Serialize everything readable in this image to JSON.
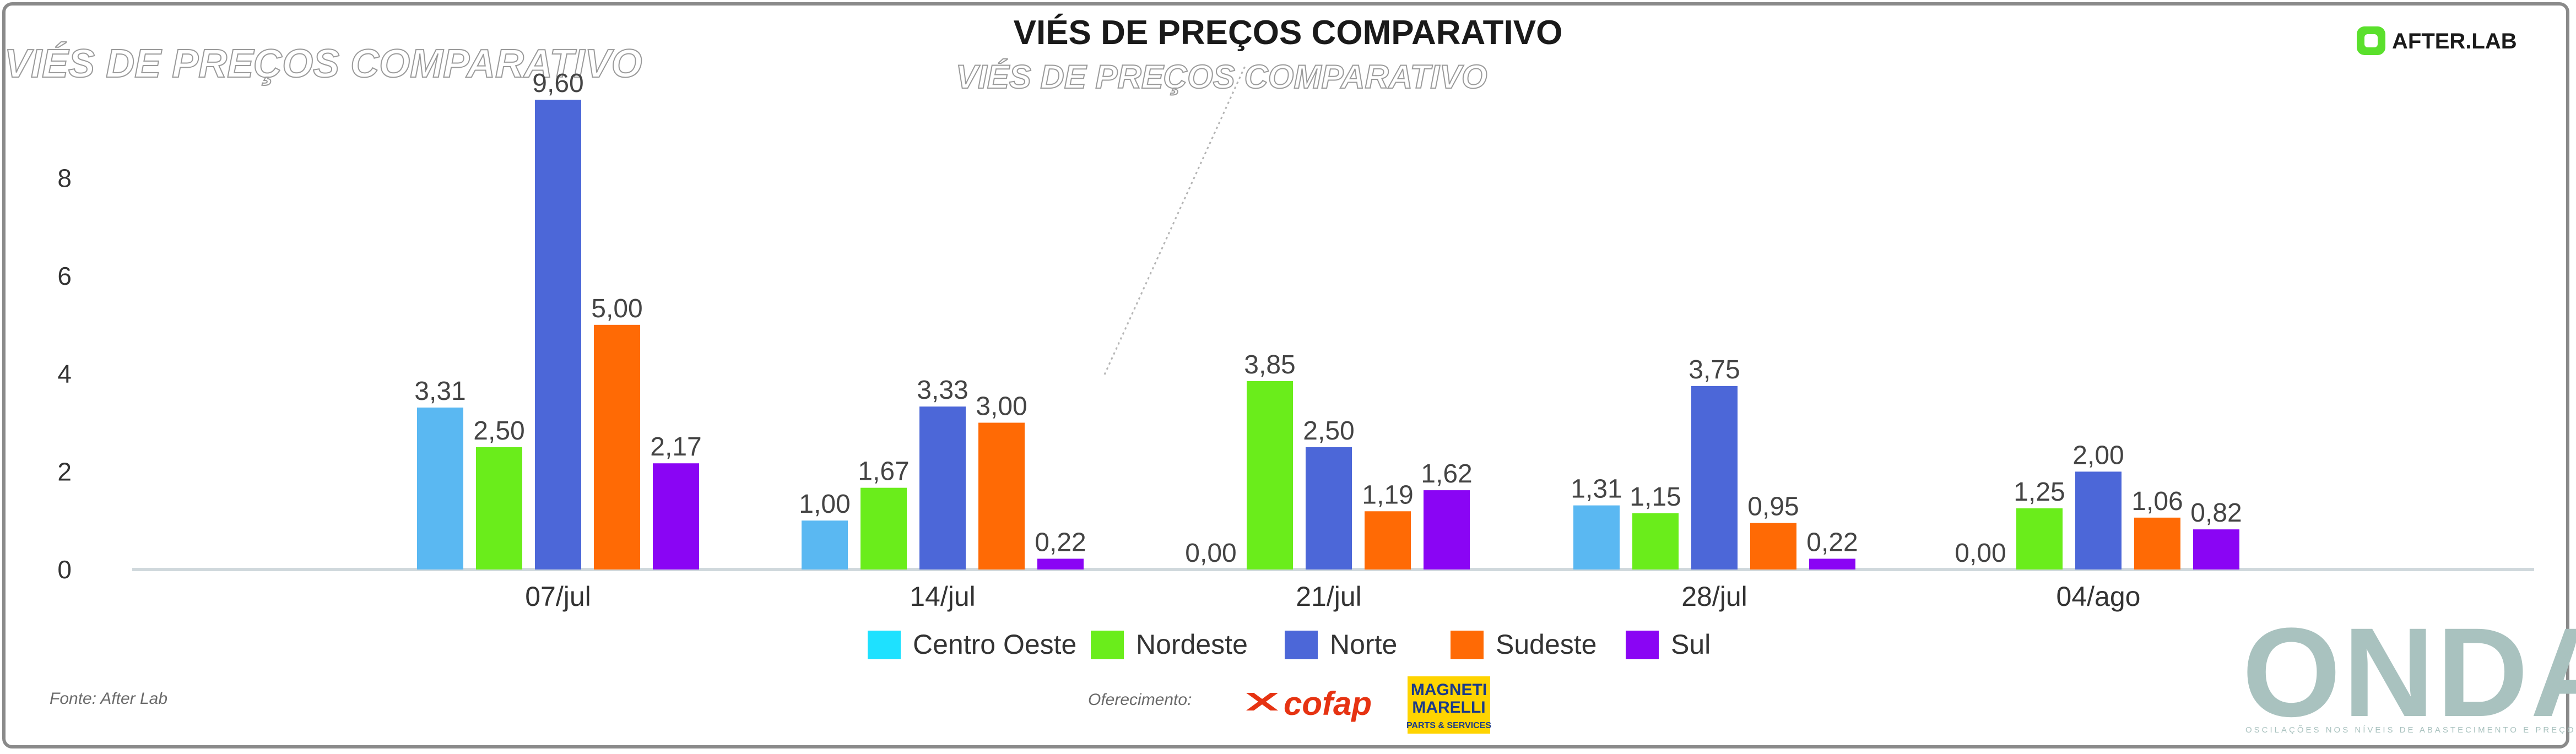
{
  "header": {
    "title": "VIÉS DE PREÇOS COMPARATIVO",
    "brand": "AFTER.LAB"
  },
  "footer": {
    "source": "Fonte: After Lab",
    "sponsors_label": "Oferecimento:",
    "sponsor_1": "cofap",
    "sponsor_2_line1": "MAGNETI",
    "sponsor_2_line2": "MARELLI",
    "sponsor_2_sub": "PARTS & SERVICES",
    "watermark": "ONDA",
    "watermark_sub": "OSCILAÇÕES NOS NÍVEIS DE ABASTECIMENTO E PREÇOS"
  },
  "colors": {
    "accent_afterlab": "#5ae02c",
    "axis": "#d0d8dc",
    "frame": "#8a8a8a"
  },
  "chart_data": {
    "type": "bar",
    "title": "VIÉS DE PREÇOS COMPARATIVO",
    "xlabel": "",
    "ylabel": "",
    "categories": [
      "07/jul",
      "14/jul",
      "21/jul",
      "28/jul",
      "04/ago"
    ],
    "yticks": [
      "0",
      "2",
      "4",
      "6",
      "8"
    ],
    "ylim": [
      0,
      8.6
    ],
    "grid": false,
    "legend_position": "bottom",
    "series": [
      {
        "name": "Centro Oeste",
        "color": "#5ab8f2",
        "legend_color": "#1ee1ff",
        "values": [
          3.31,
          1.0,
          0.0,
          1.31,
          0.0
        ],
        "labels": [
          "3,31",
          "1,00",
          "0,00",
          "1,31",
          "0,00"
        ]
      },
      {
        "name": "Nordeste",
        "color": "#6aed1b",
        "legend_color": "#6aed1b",
        "values": [
          2.5,
          1.67,
          3.85,
          1.15,
          1.25
        ],
        "labels": [
          "2,50",
          "1,67",
          "3,85",
          "1,15",
          "1,25"
        ]
      },
      {
        "name": "Norte",
        "color": "#4c67d8",
        "legend_color": "#4c67d8",
        "values": [
          9.6,
          3.33,
          2.5,
          3.75,
          2.0
        ],
        "labels": [
          "9,60",
          "3,33",
          "2,50",
          "3,75",
          "2,00"
        ]
      },
      {
        "name": "Sudeste",
        "color": "#ff6a05",
        "legend_color": "#ff6a05",
        "values": [
          5.0,
          3.0,
          1.19,
          0.95,
          1.06
        ],
        "labels": [
          "5,00",
          "3,00",
          "1,19",
          "0,95",
          "1,06"
        ]
      },
      {
        "name": "Sul",
        "color": "#8a05f4",
        "legend_color": "#8a05f4",
        "values": [
          2.17,
          0.22,
          1.62,
          0.22,
          0.82
        ],
        "labels": [
          "2,17",
          "0,22",
          "1,62",
          "0,22",
          "0,82"
        ]
      }
    ]
  }
}
